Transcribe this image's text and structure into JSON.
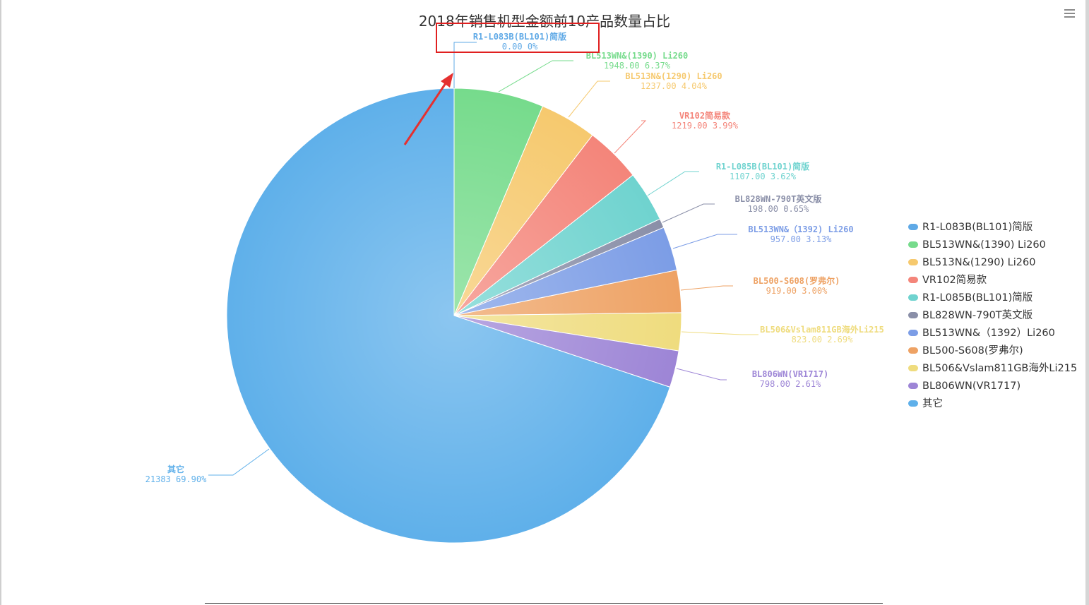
{
  "chart_data": {
    "type": "pie",
    "title": "2018年销售机型金额前10产品数量占比",
    "legend_position": "right",
    "slices": [
      {
        "name": "R1-L083B(BL101)简版",
        "label": "R1-L083B(BL101)简版",
        "value": 0.0,
        "value_text": "0.00",
        "percent_text": "0%",
        "color": "#5fa9e6",
        "legend_label": "R1-L083B(BL101)简版"
      },
      {
        "name": "BL513WN&(1390) Li260",
        "label": "BL513WN&(1390) Li260",
        "value": 1948.0,
        "value_text": "1948.00",
        "percent_text": "6.37%",
        "color": "#76db8c",
        "legend_label": "BL513WN&(1390) Li260"
      },
      {
        "name": "BL513N&(1290) Li260",
        "label": "BL513N&(1290) Li260",
        "value": 1237.0,
        "value_text": "1237.00",
        "percent_text": "4.04%",
        "color": "#f6c96e",
        "legend_label": "BL513N&(1290) Li260"
      },
      {
        "name": "VR102简易款",
        "label": "VR102简易款",
        "value": 1219.0,
        "value_text": "1219.00",
        "percent_text": "3.99%",
        "color": "#f4857a",
        "legend_label": "VR102简易款"
      },
      {
        "name": "R1-L085B(BL101)简版",
        "label": "R1-L085B(BL101)简版",
        "value": 1107.0,
        "value_text": "1107.00",
        "percent_text": "3.62%",
        "color": "#6fd3cf",
        "legend_label": "R1-L085B(BL101)简版"
      },
      {
        "name": "BL828WN-790T英文版",
        "label": "BL828WN-790T英文版",
        "value": 198.0,
        "value_text": "198.00",
        "percent_text": "0.65%",
        "color": "#8a8fa8",
        "legend_label": "BL828WN-790T英文版"
      },
      {
        "name": "BL513WN&(1392) Li260",
        "label": "BL513WN&（1392) Li260",
        "value": 957.0,
        "value_text": "957.00",
        "percent_text": "3.13%",
        "color": "#7c9de6",
        "legend_label": "BL513WN&（1392）Li260"
      },
      {
        "name": "BL500-S608(罗弗尔)",
        "label": "BL500-S608(罗弗尔)",
        "value": 919.0,
        "value_text": "919.00",
        "percent_text": "3.00%",
        "color": "#eea264",
        "legend_label": "BL500-S608(罗弗尔)"
      },
      {
        "name": "BL506&Vslam811GB海外Li215",
        "label": "BL506&Vslam811GB海外Li215",
        "value": 823.0,
        "value_text": "823.00",
        "percent_text": "2.69%",
        "color": "#efdc7e",
        "legend_label": "BL506&Vslam811GB海外Li215"
      },
      {
        "name": "BL806WN(VR1717)",
        "label": "BL806WN(VR1717)",
        "value": 798.0,
        "value_text": "798.00",
        "percent_text": "2.61%",
        "color": "#9d85d6",
        "legend_label": "BL806WN(VR1717)"
      },
      {
        "name": "其它",
        "label": "其它",
        "value": 21383,
        "value_text": "21383",
        "percent_text": "69.90%",
        "color": "#5fb0ea",
        "legend_label": "其它"
      }
    ]
  }
}
